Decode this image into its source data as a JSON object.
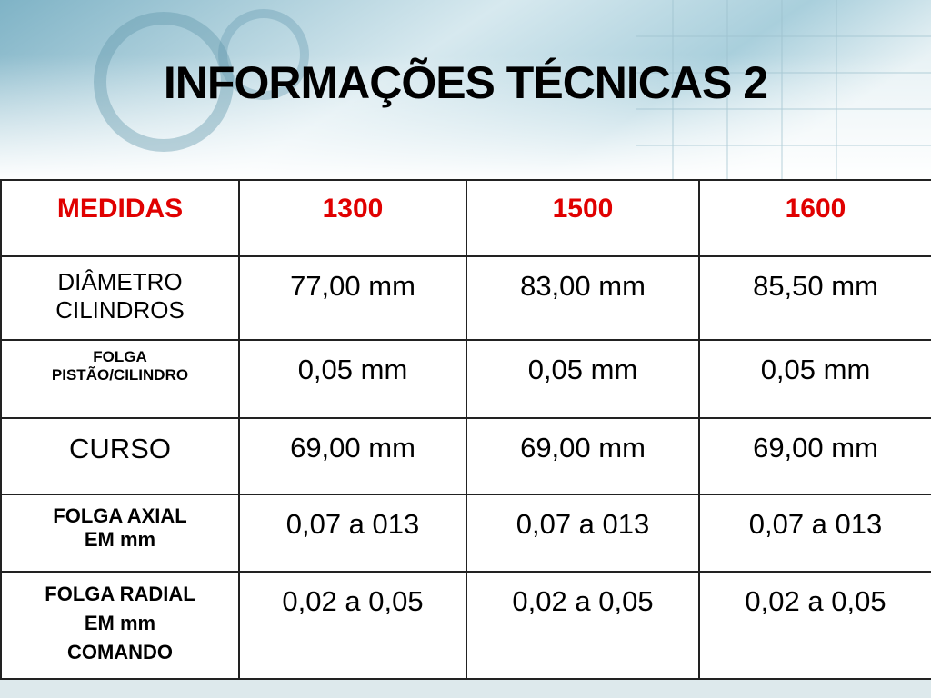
{
  "title": "INFORMAÇÕES TÉCNICAS 2",
  "table": {
    "header": [
      "MEDIDAS",
      "1300",
      "1500",
      "1600"
    ],
    "rows": [
      {
        "label": [
          "DIÂMETRO",
          "CILINDROS"
        ],
        "cells": [
          "77,00 mm",
          "83,00 mm",
          "85,50 mm"
        ]
      },
      {
        "label": [
          "FOLGA",
          "PISTÃO/CILINDRO"
        ],
        "cells": [
          "0,05 mm",
          "0,05 mm",
          "0,05 mm"
        ]
      },
      {
        "label": [
          "CURSO"
        ],
        "cells": [
          "69,00 mm",
          "69,00 mm",
          "69,00 mm"
        ]
      },
      {
        "label": [
          "FOLGA AXIAL",
          "EM mm"
        ],
        "cells": [
          "0,07 a 013",
          "0,07 a 013",
          "0,07 a 013"
        ]
      },
      {
        "label": [
          "FOLGA RADIAL",
          "EM mm",
          "COMANDO"
        ],
        "cells": [
          "0,02 a 0,05",
          "0,02 a 0,05",
          "0,02 a 0,05"
        ]
      }
    ]
  }
}
